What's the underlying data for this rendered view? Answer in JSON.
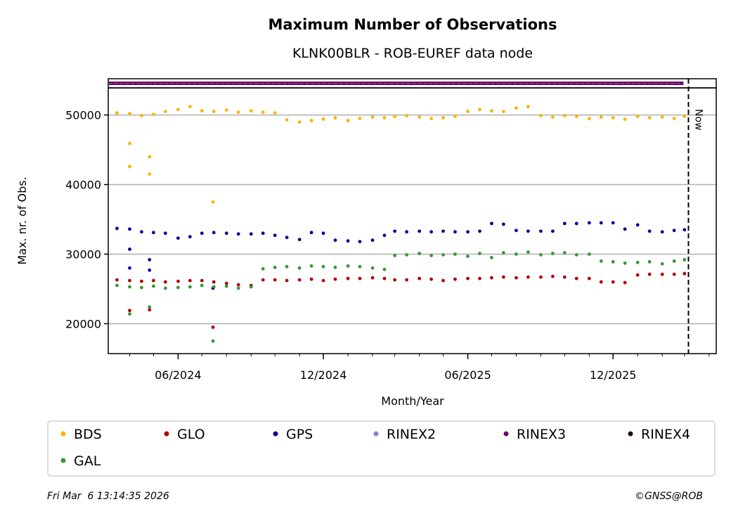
{
  "chart_data": {
    "type": "scatter",
    "title": "Maximum Number of Observations",
    "subtitle": "KLNK00BLR - ROB-EUREF data node",
    "xlabel": "Month/Year",
    "ylabel": "Max. nr. of Obs.",
    "xlim": [
      "2024-03-05",
      "2026-04-10"
    ],
    "ylim": [
      15700,
      53900
    ],
    "yticks": [
      20000,
      30000,
      40000,
      50000
    ],
    "ytick_labels": [
      "20000",
      "30000",
      "40000",
      "50000"
    ],
    "xticks": [
      "2024-06-01",
      "2024-12-01",
      "2025-06-01",
      "2025-12-01"
    ],
    "xtick_labels": [
      "06/2024",
      "12/2024",
      "06/2025",
      "12/2025"
    ],
    "grid": "horizontal",
    "now_marker": {
      "date": "2026-03-06",
      "label": "Now"
    },
    "legend_position": "bottom",
    "x": [
      "2024-03-16",
      "2024-04-01",
      "2024-04-16",
      "2024-05-01",
      "2024-05-16",
      "2024-06-01",
      "2024-06-16",
      "2024-07-01",
      "2024-07-16",
      "2024-08-01",
      "2024-08-16",
      "2024-09-01",
      "2024-09-16",
      "2024-10-01",
      "2024-10-16",
      "2024-11-01",
      "2024-11-16",
      "2024-12-01",
      "2024-12-16",
      "2025-01-01",
      "2025-01-16",
      "2025-02-01",
      "2025-02-16",
      "2025-03-01",
      "2025-03-16",
      "2025-04-01",
      "2025-04-16",
      "2025-05-01",
      "2025-05-16",
      "2025-06-01",
      "2025-06-16",
      "2025-07-01",
      "2025-07-16",
      "2025-08-01",
      "2025-08-16",
      "2025-09-01",
      "2025-09-16",
      "2025-10-01",
      "2025-10-16",
      "2025-11-01",
      "2025-11-16",
      "2025-12-01",
      "2025-12-16",
      "2026-01-01",
      "2026-01-16",
      "2026-02-01",
      "2026-02-16",
      "2026-03-01"
    ],
    "series": [
      {
        "name": "BDS",
        "color": "#ffb300",
        "values": [
          50300,
          50200,
          49900,
          50100,
          50500,
          50800,
          51200,
          50600,
          50500,
          50700,
          50400,
          50600,
          50400,
          50300,
          49300,
          49000,
          49200,
          49400,
          49600,
          49200,
          49500,
          49700,
          49600,
          49800,
          49900,
          49700,
          49500,
          49600,
          49800,
          50500,
          50800,
          50600,
          50500,
          51000,
          51200,
          49900,
          49700,
          49900,
          49800,
          49500,
          49700,
          49600,
          49400,
          49800,
          49600,
          49700,
          49500,
          49800
        ],
        "outliers": [
          {
            "date": "2024-04-01",
            "value": 42600
          },
          {
            "date": "2024-04-01",
            "value": 45900
          },
          {
            "date": "2024-04-26",
            "value": 41500
          },
          {
            "date": "2024-04-26",
            "value": 44000
          },
          {
            "date": "2024-07-15",
            "value": 37500
          }
        ]
      },
      {
        "name": "GLO",
        "color": "#b30000",
        "values": [
          26300,
          26200,
          26100,
          26200,
          26000,
          26100,
          26200,
          26200,
          26000,
          25800,
          25600,
          25500,
          26300,
          26300,
          26200,
          26300,
          26400,
          26200,
          26400,
          26500,
          26500,
          26600,
          26500,
          26300,
          26300,
          26500,
          26400,
          26200,
          26400,
          26500,
          26500,
          26600,
          26700,
          26600,
          26700,
          26700,
          26800,
          26700,
          26500,
          26500,
          26000,
          26000,
          25900,
          27000,
          27100,
          27100,
          27100,
          27200
        ],
        "outliers": [
          {
            "date": "2024-04-01",
            "value": 21900
          },
          {
            "date": "2024-04-26",
            "value": 22000
          },
          {
            "date": "2024-07-15",
            "value": 19500
          }
        ]
      },
      {
        "name": "GPS",
        "color": "#000099",
        "values": [
          33700,
          33600,
          33200,
          33100,
          33000,
          32300,
          32500,
          33000,
          33100,
          33000,
          32900,
          32900,
          33000,
          32700,
          32400,
          32100,
          33100,
          33000,
          32000,
          31900,
          31800,
          32000,
          32700,
          33300,
          33200,
          33300,
          33200,
          33300,
          33200,
          33200,
          33300,
          34400,
          34300,
          33400,
          33300,
          33300,
          33300,
          34400,
          34400,
          34500,
          34500,
          34500,
          33600,
          34200,
          33300,
          33200,
          33400,
          33500
        ],
        "outliers": [
          {
            "date": "2024-04-01",
            "value": 28000
          },
          {
            "date": "2024-04-01",
            "value": 30700
          },
          {
            "date": "2024-04-26",
            "value": 27700
          },
          {
            "date": "2024-04-26",
            "value": 29200
          },
          {
            "date": "2024-07-15",
            "value": 25100
          }
        ]
      },
      {
        "name": "RINEX2",
        "color": "#8a80c8",
        "values": [],
        "outliers": []
      },
      {
        "name": "RINEX3",
        "color": "#6b0a6b",
        "values": [],
        "outliers": [],
        "band": true
      },
      {
        "name": "RINEX4",
        "color": "#220022",
        "values": [],
        "outliers": []
      },
      {
        "name": "GAL",
        "color": "#339933",
        "values": [
          25500,
          25300,
          25200,
          25400,
          25100,
          25200,
          25300,
          25500,
          25300,
          25400,
          25100,
          25300,
          27900,
          28100,
          28200,
          28000,
          28300,
          28200,
          28100,
          28300,
          28200,
          28000,
          27800,
          29800,
          29900,
          30100,
          29800,
          29900,
          30000,
          29700,
          30100,
          29500,
          30200,
          30000,
          30300,
          29900,
          30100,
          30200,
          29900,
          30000,
          29000,
          28900,
          28700,
          28800,
          28900,
          28600,
          29000,
          29200
        ],
        "outliers": [
          {
            "date": "2024-04-01",
            "value": 21400
          },
          {
            "date": "2024-04-26",
            "value": 22400
          },
          {
            "date": "2024-07-15",
            "value": 17500
          }
        ]
      }
    ]
  },
  "footer": {
    "timestamp": "Fri Mar  6 13:14:35 2026",
    "copyright": "©GNSS@ROB"
  }
}
